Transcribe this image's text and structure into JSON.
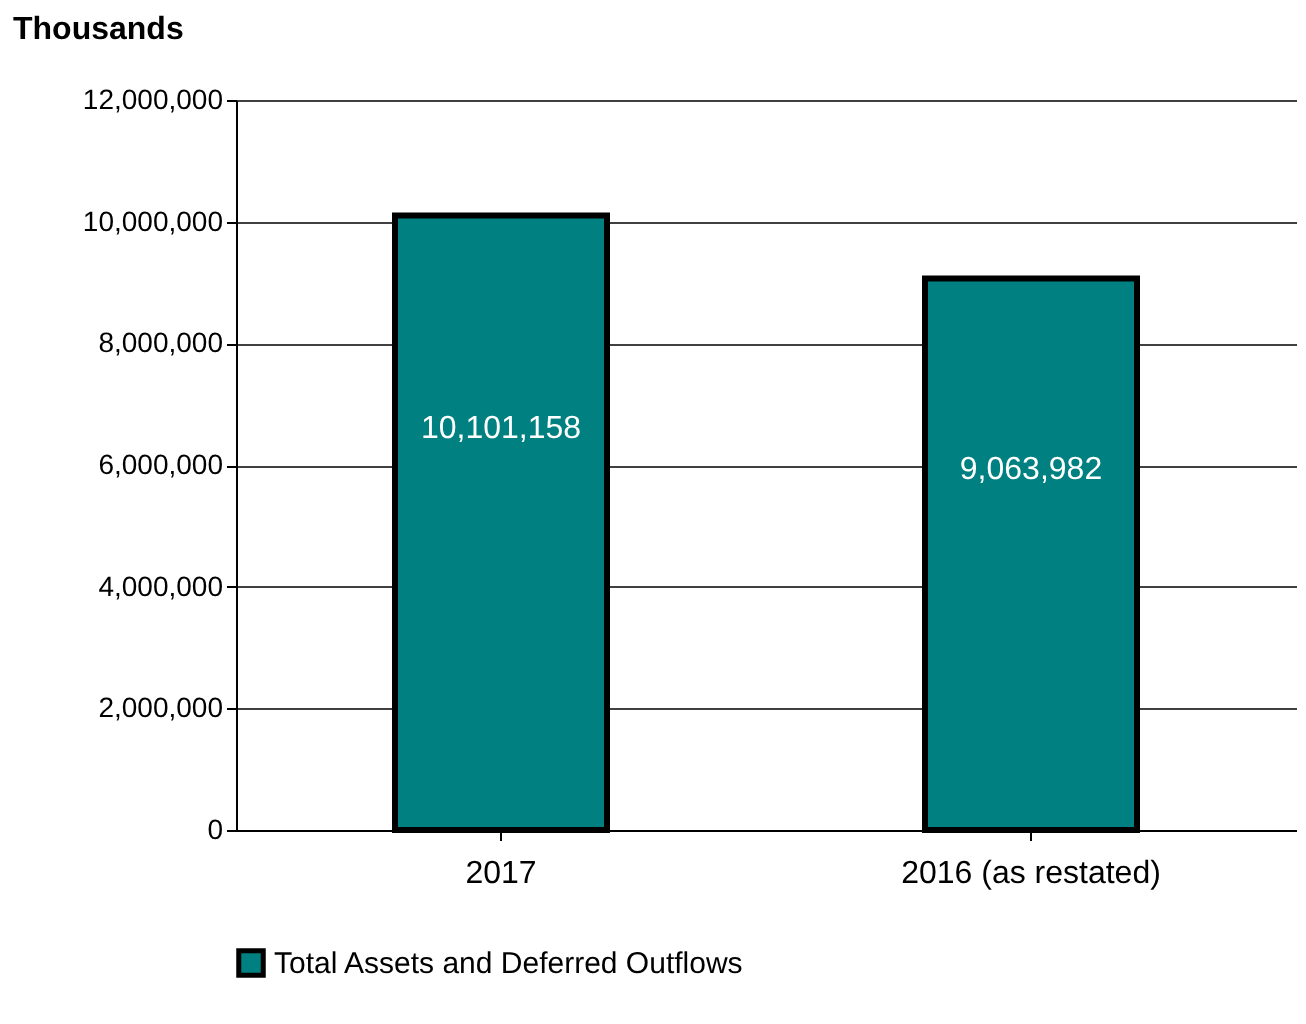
{
  "chart_data": {
    "type": "bar",
    "ylabel": "Thousands",
    "categories": [
      "2017",
      "2016 (as restated)"
    ],
    "series": [
      {
        "name": "Total Assets and Deferred Outflows",
        "color": "#008080",
        "values": [
          10101158,
          9063982
        ],
        "value_labels": [
          "10,101,158",
          "9,063,982"
        ]
      }
    ],
    "ylim": [
      0,
      12000000
    ],
    "yticks": [
      {
        "value": 0,
        "label": "0"
      },
      {
        "value": 2000000,
        "label": "2,000,000"
      },
      {
        "value": 4000000,
        "label": "4,000,000"
      },
      {
        "value": 6000000,
        "label": "6,000,000"
      },
      {
        "value": 8000000,
        "label": "8,000,000"
      },
      {
        "value": 10000000,
        "label": "10,000,000"
      },
      {
        "value": 12000000,
        "label": "12,000,000"
      }
    ],
    "grid": "y",
    "legend": "bottom"
  }
}
